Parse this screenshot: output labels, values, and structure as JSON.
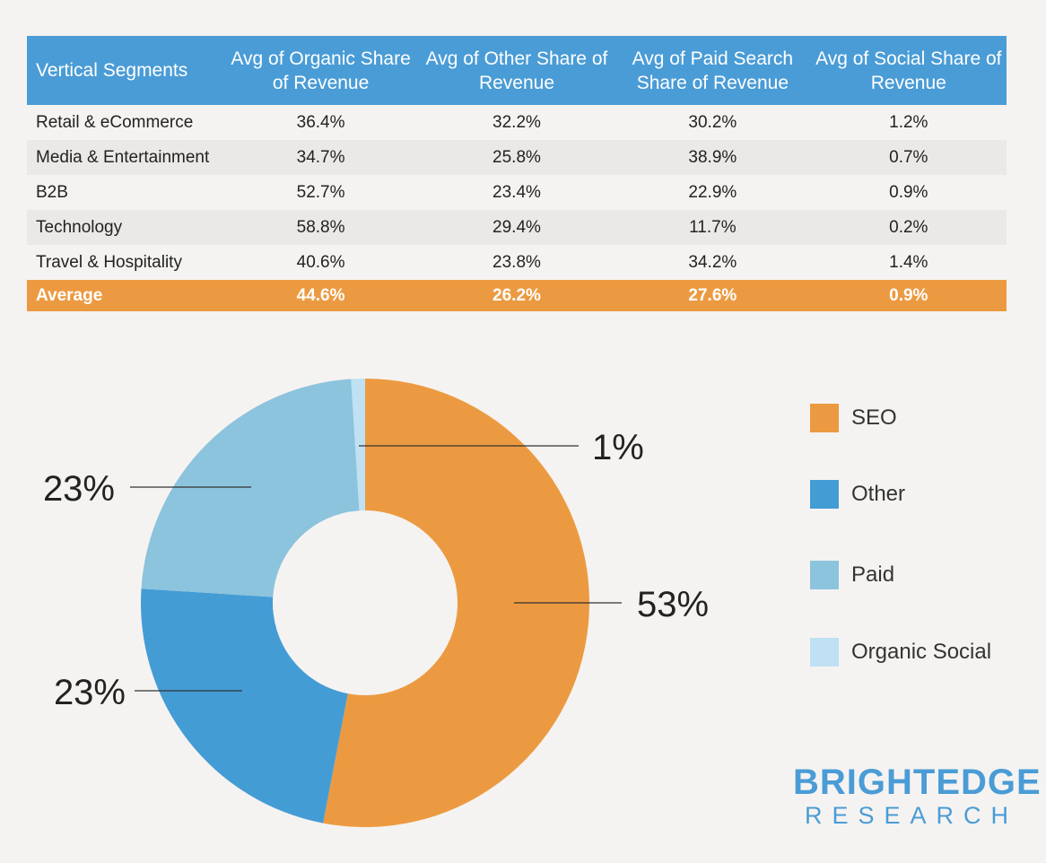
{
  "table": {
    "headers": [
      "Vertical Segments",
      "Avg of Organic Share of Revenue",
      "Avg of Other Share of Revenue",
      "Avg of Paid Search Share of Revenue",
      "Avg of Social Share of Revenue"
    ],
    "rows": [
      [
        "Retail & eCommerce",
        "36.4%",
        "32.2%",
        "30.2%",
        "1.2%"
      ],
      [
        "Media & Entertainment",
        "34.7%",
        "25.8%",
        "38.9%",
        "0.7%"
      ],
      [
        "B2B",
        "52.7%",
        "23.4%",
        "22.9%",
        "0.9%"
      ],
      [
        "Technology",
        "58.8%",
        "29.4%",
        "11.7%",
        "0.2%"
      ],
      [
        "Travel & Hospitality",
        "40.6%",
        "23.8%",
        "34.2%",
        "1.4%"
      ]
    ],
    "average": [
      "Average",
      "44.6%",
      "26.2%",
      "27.6%",
      "0.9%"
    ]
  },
  "colors": {
    "header_bg": "#4a9cd6",
    "average_bg": "#ec9a41",
    "seo": "#ec9a41",
    "other": "#449cd5",
    "paid": "#8cc3dd",
    "organic_social": "#c0e0f3"
  },
  "chart_data": {
    "type": "pie",
    "variant": "donut",
    "series": [
      {
        "name": "SEO",
        "value": 53,
        "label": "53%",
        "color": "#ec9a41"
      },
      {
        "name": "Other",
        "value": 23,
        "label": "23%",
        "color": "#449cd5"
      },
      {
        "name": "Paid",
        "value": 23,
        "label": "23%",
        "color": "#8cc3dd"
      },
      {
        "name": "Organic Social",
        "value": 1,
        "label": "1%",
        "color": "#c0e0f3"
      }
    ],
    "legend_position": "right"
  },
  "logo": {
    "main": "BRIGHTEDGE",
    "sub": "RESEARCH"
  }
}
